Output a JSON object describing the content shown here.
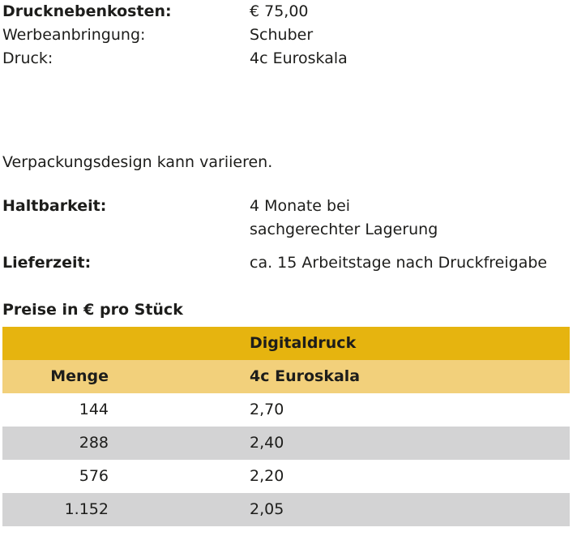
{
  "details": {
    "drucknebenkosten": {
      "label": "Drucknebenkosten:",
      "value": "€ 75,00"
    },
    "werbeanbringung": {
      "label": "Werbeanbringung:",
      "value": "Schuber"
    },
    "druck": {
      "label": "Druck:",
      "value": "4c Euroskala"
    }
  },
  "note": "Verpackungsdesign kann variieren.",
  "haltbarkeit": {
    "label": "Haltbarkeit:",
    "value_line1": "4 Monate bei",
    "value_line2": "sachgerechter Lagerung"
  },
  "lieferzeit": {
    "label": "Lieferzeit:",
    "value": "ca. 15 Arbeitstage nach Druckfreigabe"
  },
  "prices": {
    "title": "Preise in € pro Stück",
    "header_top": "Digitaldruck",
    "col_menge": "Menge",
    "col_price": "4c Euroskala",
    "rows": [
      {
        "menge": "144",
        "price": "2,70"
      },
      {
        "menge": "288",
        "price": "2,40"
      },
      {
        "menge": "576",
        "price": "2,20"
      },
      {
        "menge": "1.152",
        "price": "2,05"
      }
    ]
  },
  "colors": {
    "header_dark": "#e6b40f",
    "header_light": "#f2d07b",
    "row_alt": "#d3d3d4",
    "text": "#1d1d1b"
  }
}
